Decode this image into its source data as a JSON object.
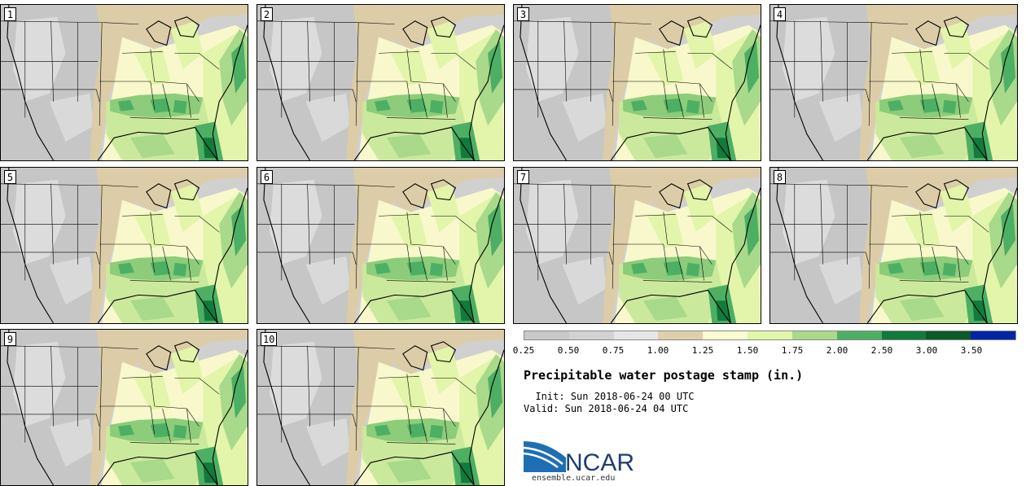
{
  "panels": [
    {
      "label": "1"
    },
    {
      "label": "2"
    },
    {
      "label": "3"
    },
    {
      "label": "4"
    },
    {
      "label": "5"
    },
    {
      "label": "6"
    },
    {
      "label": "7"
    },
    {
      "label": "8"
    },
    {
      "label": "9"
    },
    {
      "label": "10"
    }
  ],
  "legend": {
    "colors": [
      "#c8c8c8",
      "#d2d2d2",
      "#e6e6e6",
      "#dfd0ac",
      "#fbfbd2",
      "#e1f6a8",
      "#a9d98b",
      "#4daf63",
      "#107b3c",
      "#0c5a28",
      "#0025a8"
    ],
    "labels": [
      "0.25",
      "0.50",
      "0.75",
      "1.00",
      "1.25",
      "1.50",
      "1.75",
      "2.00",
      "2.50",
      "3.00",
      "3.50"
    ]
  },
  "title": "Precipitable water postage stamp (in.)",
  "init_label": "Init:",
  "init_value": "Sun 2018-06-24 00 UTC",
  "valid_label": "Valid:",
  "valid_value": "Sun 2018-06-24 04 UTC",
  "logo_text": "NCAR",
  "url": "ensemble.ucar.edu"
}
